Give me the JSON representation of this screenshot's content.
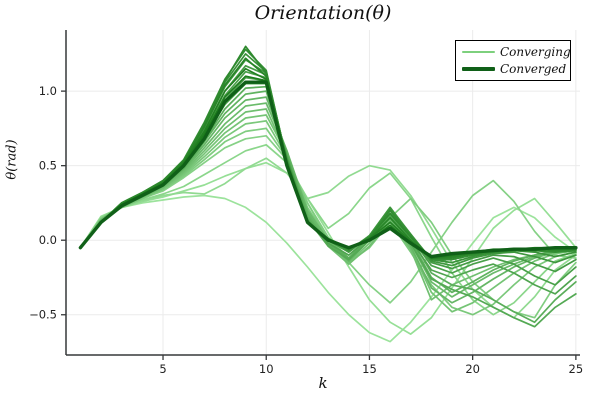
{
  "chart_data": {
    "type": "line",
    "title": "Orientation(θ)",
    "xlabel": "k",
    "ylabel": "θ(rad)",
    "x": [
      1,
      2,
      3,
      4,
      5,
      6,
      7,
      8,
      9,
      10,
      11,
      12,
      13,
      14,
      15,
      16,
      17,
      18,
      19,
      20,
      21,
      22,
      23,
      24,
      25
    ],
    "xlim": [
      0.3,
      25.2
    ],
    "ylim": [
      -0.77,
      1.41
    ],
    "x_tick_values": [
      5,
      10,
      15,
      20,
      25
    ],
    "x_tick_labels": [
      "5",
      "10",
      "15",
      "20",
      "25"
    ],
    "y_tick_values": [
      1.0,
      0.5,
      0.0,
      -0.5
    ],
    "y_tick_labels": [
      "1.0",
      "0.5",
      "0.0",
      "−0.5"
    ],
    "grid": true,
    "legend_position": "top-right",
    "legend": [
      {
        "label": "Converging",
        "color": "#7dd07d",
        "line_width": 2.2
      },
      {
        "label": "Converged",
        "color": "#106018",
        "line_width": 3.4
      }
    ],
    "colors": {
      "converging_start": "#9ce39c",
      "converging_end": "#1d7c1d",
      "converged": "#106018",
      "grid": "#ebebeb",
      "axis": "#36383a",
      "tick_text": "#222222",
      "background": "#ffffff"
    },
    "line_widths": {
      "converging": 1.7,
      "converged": 3.4
    },
    "series": [
      {
        "name": "converging-01",
        "role": "converging",
        "values": [
          -0.05,
          0.16,
          0.22,
          0.25,
          0.27,
          0.29,
          0.3,
          0.28,
          0.22,
          0.12,
          -0.02,
          -0.18,
          -0.35,
          -0.5,
          -0.62,
          -0.68,
          -0.55,
          -0.38,
          -0.2,
          -0.02,
          0.15,
          0.22,
          0.15,
          0.02,
          -0.08
        ]
      },
      {
        "name": "converging-02",
        "role": "converging",
        "values": [
          -0.05,
          0.16,
          0.22,
          0.26,
          0.29,
          0.33,
          0.37,
          0.43,
          0.48,
          0.52,
          0.45,
          0.28,
          0.05,
          -0.18,
          -0.4,
          -0.55,
          -0.63,
          -0.52,
          -0.32,
          -0.12,
          0.08,
          0.2,
          0.28,
          0.12,
          -0.05
        ]
      },
      {
        "name": "converging-03",
        "role": "converging",
        "values": [
          -0.05,
          0.15,
          0.22,
          0.26,
          0.3,
          0.32,
          0.31,
          0.38,
          0.48,
          0.55,
          0.45,
          0.28,
          0.32,
          0.43,
          0.5,
          0.47,
          0.3,
          0.08,
          -0.15,
          -0.33,
          -0.45,
          -0.52,
          -0.38,
          -0.2,
          -0.1
        ]
      },
      {
        "name": "converging-04",
        "role": "converging",
        "values": [
          -0.05,
          0.15,
          0.22,
          0.27,
          0.31,
          0.36,
          0.44,
          0.52,
          0.6,
          0.64,
          0.52,
          0.28,
          0.08,
          0.18,
          0.35,
          0.45,
          0.28,
          0.02,
          -0.22,
          -0.4,
          -0.5,
          -0.42,
          -0.28,
          -0.14,
          -0.09
        ]
      },
      {
        "name": "converging-05",
        "role": "converging",
        "values": [
          -0.05,
          0.15,
          0.22,
          0.28,
          0.33,
          0.42,
          0.52,
          0.62,
          0.68,
          0.7,
          0.54,
          0.25,
          0.0,
          -0.15,
          -0.3,
          -0.42,
          -0.28,
          -0.08,
          0.12,
          0.3,
          0.4,
          0.26,
          0.06,
          -0.1,
          -0.12
        ]
      },
      {
        "name": "converging-06",
        "role": "converging",
        "values": [
          -0.05,
          0.14,
          0.22,
          0.28,
          0.34,
          0.43,
          0.54,
          0.66,
          0.73,
          0.75,
          0.55,
          0.25,
          0.02,
          -0.12,
          0.0,
          0.15,
          0.28,
          0.12,
          -0.1,
          -0.28,
          -0.4,
          -0.48,
          -0.52,
          -0.3,
          -0.15
        ]
      },
      {
        "name": "converging-07",
        "role": "converging",
        "values": [
          -0.05,
          0.14,
          0.22,
          0.28,
          0.34,
          0.44,
          0.56,
          0.69,
          0.78,
          0.8,
          0.56,
          0.22,
          0.0,
          -0.15,
          -0.05,
          0.12,
          -0.08,
          -0.3,
          -0.45,
          -0.5,
          -0.43,
          -0.3,
          -0.18,
          -0.11,
          -0.08
        ]
      },
      {
        "name": "converging-08",
        "role": "converging",
        "values": [
          -0.05,
          0.14,
          0.22,
          0.29,
          0.35,
          0.45,
          0.58,
          0.72,
          0.82,
          0.84,
          0.58,
          0.2,
          -0.02,
          -0.15,
          -0.02,
          0.14,
          -0.05,
          -0.35,
          -0.48,
          -0.42,
          -0.32,
          -0.22,
          -0.14,
          -0.09,
          -0.07
        ]
      },
      {
        "name": "converging-09",
        "role": "converging",
        "values": [
          -0.05,
          0.14,
          0.23,
          0.29,
          0.35,
          0.46,
          0.6,
          0.75,
          0.86,
          0.88,
          0.58,
          0.18,
          -0.04,
          -0.16,
          -0.04,
          0.13,
          -0.06,
          -0.4,
          -0.3,
          -0.24,
          -0.18,
          -0.13,
          -0.1,
          -0.08,
          -0.06
        ]
      },
      {
        "name": "converging-10",
        "role": "converging",
        "values": [
          -0.05,
          0.13,
          0.23,
          0.29,
          0.36,
          0.47,
          0.62,
          0.78,
          0.9,
          0.92,
          0.6,
          0.2,
          0.0,
          -0.12,
          0.02,
          0.16,
          -0.02,
          -0.28,
          -0.38,
          -0.3,
          -0.22,
          -0.16,
          -0.11,
          -0.08,
          -0.06
        ]
      },
      {
        "name": "converging-11",
        "role": "converging",
        "values": [
          -0.05,
          0.13,
          0.23,
          0.3,
          0.36,
          0.48,
          0.64,
          0.82,
          0.94,
          0.96,
          0.6,
          0.18,
          -0.02,
          -0.14,
          0.0,
          0.15,
          -0.04,
          -0.32,
          -0.42,
          -0.35,
          -0.26,
          -0.18,
          -0.12,
          -0.08,
          -0.06
        ]
      },
      {
        "name": "converging-12",
        "role": "converging",
        "values": [
          -0.05,
          0.13,
          0.23,
          0.3,
          0.37,
          0.48,
          0.66,
          0.85,
          0.98,
          1.0,
          0.58,
          0.16,
          -0.02,
          -0.12,
          0.02,
          0.18,
          0.0,
          -0.25,
          -0.35,
          -0.28,
          -0.2,
          -0.14,
          -0.1,
          -0.07,
          -0.06
        ]
      },
      {
        "name": "converging-13",
        "role": "converging",
        "values": [
          -0.05,
          0.13,
          0.23,
          0.3,
          0.37,
          0.49,
          0.67,
          0.88,
          1.02,
          1.03,
          0.57,
          0.15,
          -0.03,
          -0.12,
          0.02,
          0.2,
          0.02,
          -0.22,
          -0.3,
          -0.33,
          -0.4,
          -0.48,
          -0.55,
          -0.4,
          -0.28
        ]
      },
      {
        "name": "converging-14",
        "role": "converging",
        "values": [
          -0.05,
          0.13,
          0.24,
          0.3,
          0.37,
          0.5,
          0.69,
          0.91,
          1.05,
          1.05,
          0.56,
          0.14,
          -0.04,
          -0.13,
          0.0,
          0.16,
          -0.02,
          -0.26,
          -0.33,
          -0.38,
          -0.45,
          -0.52,
          -0.58,
          -0.45,
          -0.36
        ]
      },
      {
        "name": "converging-15",
        "role": "converging",
        "values": [
          -0.05,
          0.12,
          0.24,
          0.31,
          0.38,
          0.5,
          0.7,
          0.94,
          1.09,
          1.07,
          0.55,
          0.13,
          -0.02,
          -0.1,
          0.02,
          0.17,
          0.0,
          -0.2,
          -0.25,
          -0.2,
          -0.16,
          -0.22,
          -0.3,
          -0.36,
          -0.24
        ]
      },
      {
        "name": "converging-16",
        "role": "converging",
        "values": [
          -0.05,
          0.12,
          0.24,
          0.31,
          0.38,
          0.51,
          0.72,
          0.97,
          1.13,
          1.09,
          0.55,
          0.13,
          0.0,
          -0.08,
          0.03,
          0.2,
          0.02,
          -0.17,
          -0.22,
          -0.16,
          -0.12,
          -0.16,
          -0.24,
          -0.3,
          -0.18
        ]
      },
      {
        "name": "converging-17",
        "role": "converging",
        "values": [
          -0.05,
          0.12,
          0.24,
          0.31,
          0.39,
          0.52,
          0.74,
          1.0,
          1.17,
          1.11,
          0.54,
          0.12,
          0.0,
          -0.08,
          0.03,
          0.22,
          0.03,
          -0.15,
          -0.19,
          -0.14,
          -0.1,
          -0.11,
          -0.16,
          -0.21,
          -0.13
        ]
      },
      {
        "name": "converging-18",
        "role": "converging",
        "values": [
          -0.05,
          0.12,
          0.24,
          0.31,
          0.39,
          0.52,
          0.76,
          1.03,
          1.21,
          1.12,
          0.54,
          0.12,
          0.0,
          -0.07,
          0.03,
          0.22,
          0.04,
          -0.14,
          -0.17,
          -0.12,
          -0.09,
          -0.08,
          -0.11,
          -0.15,
          -0.1
        ]
      },
      {
        "name": "converging-19",
        "role": "converging",
        "values": [
          -0.05,
          0.12,
          0.25,
          0.32,
          0.39,
          0.53,
          0.78,
          1.06,
          1.25,
          1.13,
          0.53,
          0.12,
          0.01,
          -0.07,
          0.02,
          0.21,
          0.04,
          -0.13,
          -0.15,
          -0.11,
          -0.08,
          -0.07,
          -0.08,
          -0.11,
          -0.08
        ]
      },
      {
        "name": "converging-20",
        "role": "converging",
        "values": [
          -0.05,
          0.12,
          0.25,
          0.32,
          0.4,
          0.54,
          0.79,
          1.08,
          1.28,
          1.14,
          0.53,
          0.12,
          0.01,
          -0.06,
          0.02,
          0.2,
          0.03,
          -0.13,
          -0.13,
          -0.1,
          -0.08,
          -0.07,
          -0.07,
          -0.08,
          -0.07
        ]
      },
      {
        "name": "converging-21",
        "role": "converging",
        "values": [
          -0.05,
          0.12,
          0.25,
          0.32,
          0.4,
          0.53,
          0.78,
          1.07,
          1.3,
          1.12,
          0.52,
          0.12,
          0.01,
          -0.06,
          0.02,
          0.18,
          0.02,
          -0.12,
          -0.12,
          -0.09,
          -0.07,
          -0.06,
          -0.06,
          -0.07,
          -0.06
        ]
      },
      {
        "name": "converging-22",
        "role": "converging",
        "values": [
          -0.05,
          0.12,
          0.24,
          0.31,
          0.39,
          0.53,
          0.76,
          1.04,
          1.22,
          1.1,
          0.52,
          0.12,
          0.01,
          -0.05,
          0.01,
          0.15,
          0.0,
          -0.12,
          -0.11,
          -0.09,
          -0.07,
          -0.06,
          -0.06,
          -0.06,
          -0.06
        ]
      },
      {
        "name": "converging-23",
        "role": "converging",
        "values": [
          -0.05,
          0.12,
          0.24,
          0.31,
          0.38,
          0.52,
          0.73,
          1.0,
          1.15,
          1.08,
          0.51,
          0.12,
          0.0,
          -0.05,
          0.01,
          0.12,
          -0.01,
          -0.12,
          -0.1,
          -0.08,
          -0.07,
          -0.06,
          -0.06,
          -0.05,
          -0.05
        ]
      },
      {
        "name": "converging-24",
        "role": "converging",
        "values": [
          -0.05,
          0.12,
          0.24,
          0.31,
          0.38,
          0.51,
          0.71,
          0.96,
          1.1,
          1.07,
          0.51,
          0.12,
          0.0,
          -0.05,
          0.0,
          0.1,
          -0.02,
          -0.11,
          -0.1,
          -0.08,
          -0.06,
          -0.06,
          -0.05,
          -0.05,
          -0.05
        ]
      },
      {
        "name": "converged",
        "role": "converged",
        "values": [
          -0.05,
          0.12,
          0.23,
          0.3,
          0.37,
          0.5,
          0.68,
          0.93,
          1.06,
          1.06,
          0.5,
          0.12,
          0.0,
          -0.05,
          0.0,
          0.08,
          -0.02,
          -0.11,
          -0.09,
          -0.08,
          -0.07,
          -0.06,
          -0.06,
          -0.05,
          -0.05
        ]
      }
    ]
  }
}
